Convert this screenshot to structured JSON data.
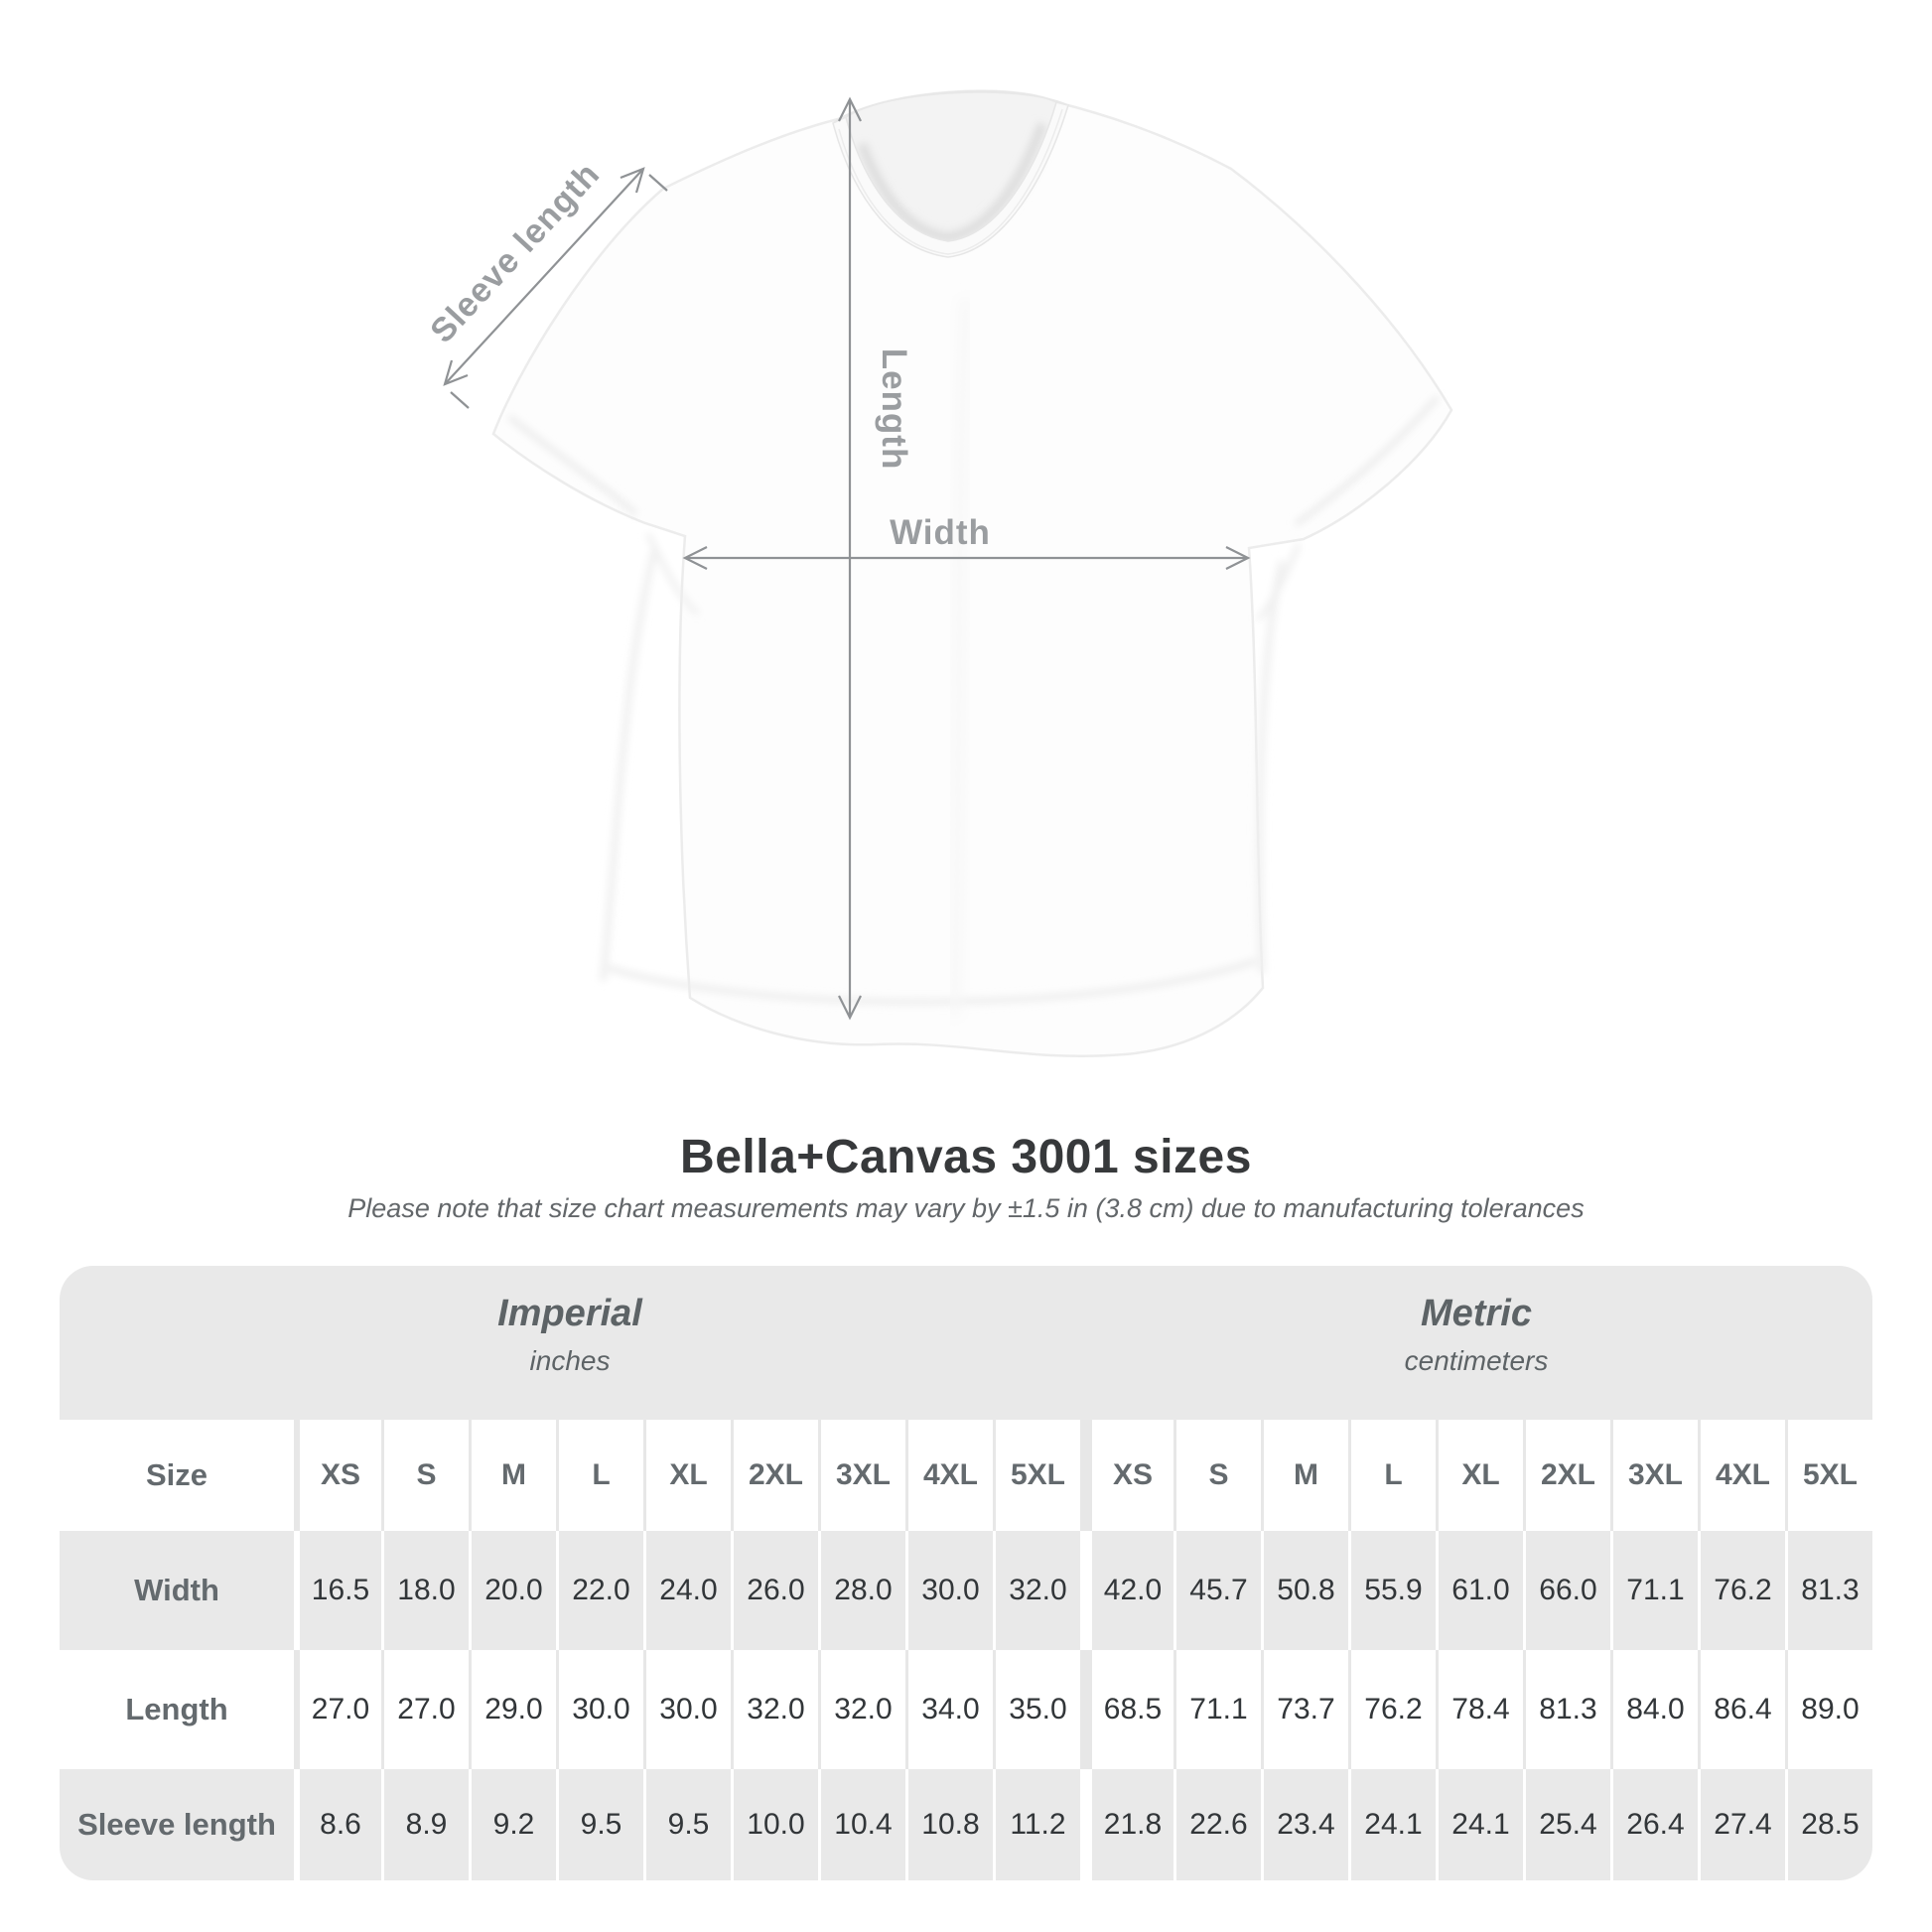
{
  "figure": {
    "labels": {
      "sleeve_length": "Sleeve length",
      "length": "Length",
      "width": "Width"
    }
  },
  "heading": {
    "title": "Bella+Canvas 3001 sizes",
    "subtitle": "Please note that size chart measurements may vary by ±1.5 in (3.8 cm) due to manufacturing tolerances"
  },
  "table": {
    "corner_label": "Size",
    "row_labels": [
      "Width",
      "Length",
      "Sleeve length"
    ],
    "groups": [
      {
        "name": "Imperial",
        "unit": "inches"
      },
      {
        "name": "Metric",
        "unit": "centimeters"
      }
    ]
  },
  "chart_data": {
    "type": "table",
    "title": "Bella+Canvas 3001 sizes",
    "columns": [
      "XS",
      "S",
      "M",
      "L",
      "XL",
      "2XL",
      "3XL",
      "4XL",
      "5XL"
    ],
    "rows": [
      "Width",
      "Length",
      "Sleeve length"
    ],
    "units": {
      "Imperial": "inches",
      "Metric": "centimeters"
    },
    "imperial_inches": {
      "Width": [
        16.5,
        18.0,
        20.0,
        22.0,
        24.0,
        26.0,
        28.0,
        30.0,
        32.0
      ],
      "Length": [
        27.0,
        27.0,
        29.0,
        30.0,
        30.0,
        32.0,
        32.0,
        34.0,
        35.0
      ],
      "Sleeve length": [
        8.6,
        8.9,
        9.2,
        9.5,
        9.5,
        10.0,
        10.4,
        10.8,
        11.2
      ]
    },
    "metric_centimeters": {
      "Width": [
        42.0,
        45.7,
        50.8,
        55.9,
        61.0,
        66.0,
        71.1,
        76.2,
        81.3
      ],
      "Length": [
        68.5,
        71.1,
        73.7,
        76.2,
        78.4,
        81.3,
        84.0,
        86.4,
        89.0
      ],
      "Sleeve length": [
        21.8,
        22.6,
        23.4,
        24.1,
        24.1,
        25.4,
        26.4,
        27.4,
        28.5
      ]
    }
  },
  "colors": {
    "band_gray": "#e9e9e9",
    "label_text": "#646a6e",
    "value_text": "#323639",
    "annotation": "#8f9295",
    "annotation_label": "#9a9da0",
    "title_text": "#37393b"
  }
}
